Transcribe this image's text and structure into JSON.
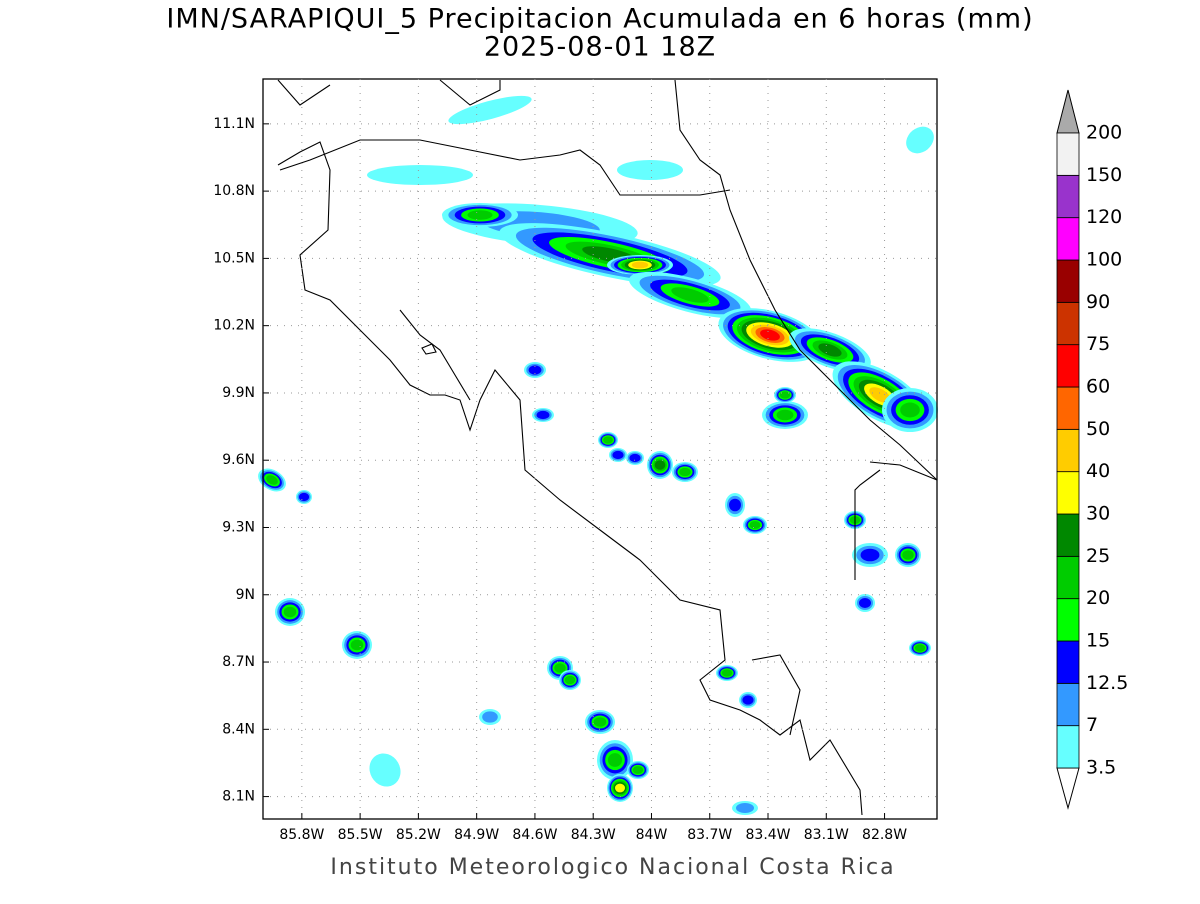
{
  "title": "IMN/SARAPIQUI_5 Precipitacion Acumulada en 6 horas (mm)",
  "subtitle": "2025-08-01 18Z",
  "map": {
    "xlim": [
      -86.0,
      -82.53
    ],
    "ylim": [
      8.0,
      11.3
    ],
    "xticks": [
      {
        "value": -85.8,
        "label": "85.8W"
      },
      {
        "value": -85.5,
        "label": "85.5W"
      },
      {
        "value": -85.2,
        "label": "85.2W"
      },
      {
        "value": -84.9,
        "label": "84.9W"
      },
      {
        "value": -84.6,
        "label": "84.6W"
      },
      {
        "value": -84.3,
        "label": "84.3W"
      },
      {
        "value": -84.0,
        "label": "84W"
      },
      {
        "value": -83.7,
        "label": "83.7W"
      },
      {
        "value": -83.4,
        "label": "83.4W"
      },
      {
        "value": -83.1,
        "label": "83.1W"
      },
      {
        "value": -82.8,
        "label": "82.8W"
      }
    ],
    "yticks": [
      {
        "value": 8.1,
        "label": "8.1N"
      },
      {
        "value": 8.4,
        "label": "8.4N"
      },
      {
        "value": 8.7,
        "label": "8.7N"
      },
      {
        "value": 9.0,
        "label": "9N"
      },
      {
        "value": 9.3,
        "label": "9.3N"
      },
      {
        "value": 9.6,
        "label": "9.6N"
      },
      {
        "value": 9.9,
        "label": "9.9N"
      },
      {
        "value": 10.2,
        "label": "10.2N"
      },
      {
        "value": 10.5,
        "label": "10.5N"
      },
      {
        "value": 10.8,
        "label": "10.8N"
      },
      {
        "value": 11.1,
        "label": "11.1N"
      }
    ],
    "grid": true
  },
  "colorbar": {
    "levels": [
      3.5,
      7,
      12.5,
      15,
      20,
      25,
      30,
      40,
      50,
      60,
      75,
      90,
      100,
      120,
      150,
      200
    ],
    "colors": [
      "#ffffff",
      "#66ffff",
      "#3399ff",
      "#0000ff",
      "#00ff00",
      "#00cc00",
      "#008800",
      "#ffff00",
      "#ffcc00",
      "#ff6600",
      "#ff0000",
      "#cc3300",
      "#990000",
      "#ff00ff",
      "#9933cc",
      "#f2f2f2",
      "#aaaaaa"
    ]
  },
  "footer": "Instituto Meteorologico Nacional Costa Rica"
}
